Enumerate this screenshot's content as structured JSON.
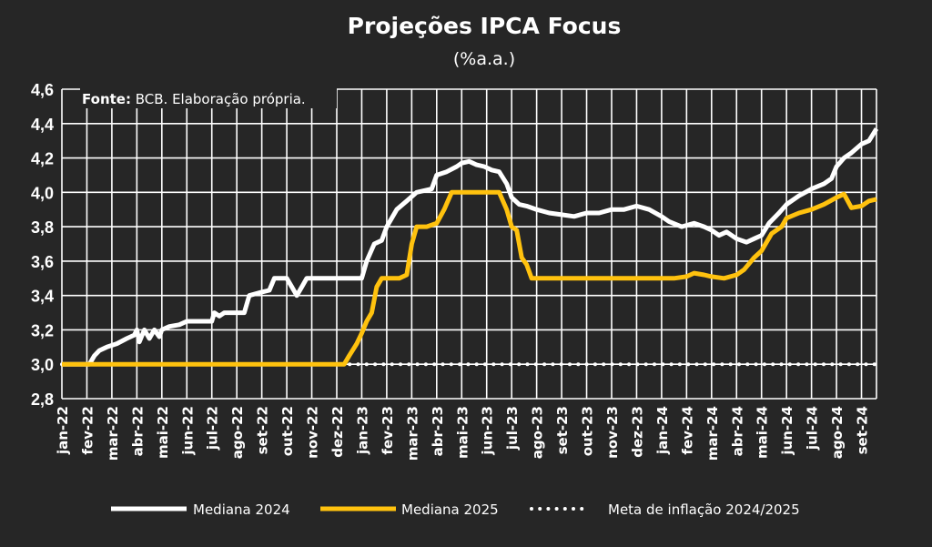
{
  "chart_data": {
    "type": "line",
    "title": "Projeções IPCA Focus",
    "subtitle": "(%a.a.)",
    "source_label": "Fonte:",
    "source_text": " BCB. Elaboração própria.",
    "ylim": [
      2.8,
      4.6
    ],
    "yticks": [
      "2,8",
      "3,0",
      "3,2",
      "3,4",
      "3,6",
      "3,8",
      "4,0",
      "4,2",
      "4,4",
      "4,6"
    ],
    "x_months": [
      "jan-22",
      "fev-22",
      "mar-22",
      "abr-22",
      "mai-22",
      "jun-22",
      "jul-22",
      "ago-22",
      "set-22",
      "out-22",
      "nov-22",
      "dez-22",
      "jan-23",
      "fev-23",
      "mar-23",
      "abr-23",
      "mai-23",
      "jun-23",
      "jul-23",
      "ago-23",
      "set-23",
      "out-23",
      "nov-23",
      "dez-23",
      "jan-24",
      "fev-24",
      "mar-24",
      "abr-24",
      "mai-24",
      "jun-24",
      "jul-24",
      "ago-24",
      "set-24"
    ],
    "xlim_months": [
      0,
      32.6
    ],
    "grid": true,
    "legend_position": "bottom",
    "series": [
      {
        "name": "Mediana 2024",
        "color": "#ffffff",
        "style": "solid",
        "points": [
          [
            0,
            3.0
          ],
          [
            1.1,
            3.0
          ],
          [
            1.3,
            3.05
          ],
          [
            1.5,
            3.08
          ],
          [
            1.8,
            3.1
          ],
          [
            2.2,
            3.12
          ],
          [
            2.6,
            3.15
          ],
          [
            2.9,
            3.17
          ],
          [
            3.0,
            3.2
          ],
          [
            3.1,
            3.13
          ],
          [
            3.3,
            3.2
          ],
          [
            3.5,
            3.15
          ],
          [
            3.7,
            3.2
          ],
          [
            3.9,
            3.16
          ],
          [
            4.0,
            3.2
          ],
          [
            4.3,
            3.22
          ],
          [
            4.7,
            3.23
          ],
          [
            5.0,
            3.25
          ],
          [
            5.5,
            3.25
          ],
          [
            6.0,
            3.25
          ],
          [
            6.1,
            3.3
          ],
          [
            6.3,
            3.28
          ],
          [
            6.5,
            3.3
          ],
          [
            7.0,
            3.3
          ],
          [
            7.3,
            3.3
          ],
          [
            7.5,
            3.4
          ],
          [
            8.0,
            3.42
          ],
          [
            8.3,
            3.43
          ],
          [
            8.5,
            3.5
          ],
          [
            9.0,
            3.5
          ],
          [
            9.2,
            3.45
          ],
          [
            9.4,
            3.4
          ],
          [
            9.6,
            3.45
          ],
          [
            9.8,
            3.5
          ],
          [
            10.5,
            3.5
          ],
          [
            11.0,
            3.5
          ],
          [
            11.5,
            3.5
          ],
          [
            12.0,
            3.5
          ],
          [
            12.2,
            3.6
          ],
          [
            12.5,
            3.7
          ],
          [
            12.8,
            3.72
          ],
          [
            13.0,
            3.8
          ],
          [
            13.2,
            3.85
          ],
          [
            13.4,
            3.9
          ],
          [
            13.8,
            3.95
          ],
          [
            14.2,
            4.0
          ],
          [
            14.8,
            4.02
          ],
          [
            15.0,
            4.1
          ],
          [
            15.4,
            4.12
          ],
          [
            15.8,
            4.15
          ],
          [
            16.0,
            4.17
          ],
          [
            16.3,
            4.18
          ],
          [
            16.6,
            4.16
          ],
          [
            16.9,
            4.15
          ],
          [
            17.2,
            4.13
          ],
          [
            17.5,
            4.12
          ],
          [
            17.8,
            4.05
          ],
          [
            18.0,
            3.97
          ],
          [
            18.3,
            3.93
          ],
          [
            18.6,
            3.92
          ],
          [
            19.0,
            3.9
          ],
          [
            19.5,
            3.88
          ],
          [
            20.0,
            3.87
          ],
          [
            20.5,
            3.86
          ],
          [
            21.0,
            3.88
          ],
          [
            21.5,
            3.88
          ],
          [
            22.0,
            3.9
          ],
          [
            22.5,
            3.9
          ],
          [
            23.0,
            3.92
          ],
          [
            23.5,
            3.9
          ],
          [
            24.0,
            3.86
          ],
          [
            24.3,
            3.83
          ],
          [
            24.8,
            3.8
          ],
          [
            25.3,
            3.82
          ],
          [
            25.7,
            3.8
          ],
          [
            26.0,
            3.78
          ],
          [
            26.3,
            3.75
          ],
          [
            26.6,
            3.77
          ],
          [
            27.0,
            3.73
          ],
          [
            27.4,
            3.71
          ],
          [
            27.7,
            3.73
          ],
          [
            28.0,
            3.75
          ],
          [
            28.3,
            3.82
          ],
          [
            28.7,
            3.88
          ],
          [
            29.0,
            3.93
          ],
          [
            29.5,
            3.98
          ],
          [
            30.0,
            4.02
          ],
          [
            30.5,
            4.05
          ],
          [
            30.8,
            4.08
          ],
          [
            31.0,
            4.15
          ],
          [
            31.3,
            4.2
          ],
          [
            31.6,
            4.23
          ],
          [
            32.0,
            4.28
          ],
          [
            32.3,
            4.3
          ],
          [
            32.6,
            4.37
          ]
        ]
      },
      {
        "name": "Mediana 2025",
        "color": "#ffc20e",
        "style": "solid",
        "points": [
          [
            0,
            3.0
          ],
          [
            11.0,
            3.0
          ],
          [
            11.3,
            3.0
          ],
          [
            11.5,
            3.05
          ],
          [
            11.8,
            3.12
          ],
          [
            12.0,
            3.18
          ],
          [
            12.2,
            3.25
          ],
          [
            12.4,
            3.3
          ],
          [
            12.6,
            3.45
          ],
          [
            12.8,
            3.5
          ],
          [
            13.5,
            3.5
          ],
          [
            13.8,
            3.52
          ],
          [
            14.0,
            3.7
          ],
          [
            14.2,
            3.8
          ],
          [
            14.6,
            3.8
          ],
          [
            15.0,
            3.82
          ],
          [
            15.3,
            3.9
          ],
          [
            15.6,
            4.0
          ],
          [
            16.5,
            4.0
          ],
          [
            17.0,
            4.0
          ],
          [
            17.5,
            4.0
          ],
          [
            17.8,
            3.9
          ],
          [
            18.0,
            3.8
          ],
          [
            18.2,
            3.78
          ],
          [
            18.4,
            3.62
          ],
          [
            18.6,
            3.58
          ],
          [
            18.8,
            3.5
          ],
          [
            19.5,
            3.5
          ],
          [
            20.5,
            3.5
          ],
          [
            21.5,
            3.5
          ],
          [
            22.5,
            3.5
          ],
          [
            23.5,
            3.5
          ],
          [
            24.5,
            3.5
          ],
          [
            25.0,
            3.51
          ],
          [
            25.3,
            3.53
          ],
          [
            25.7,
            3.52
          ],
          [
            26.0,
            3.51
          ],
          [
            26.5,
            3.5
          ],
          [
            27.0,
            3.52
          ],
          [
            27.3,
            3.55
          ],
          [
            27.7,
            3.62
          ],
          [
            28.0,
            3.66
          ],
          [
            28.4,
            3.76
          ],
          [
            28.8,
            3.8
          ],
          [
            29.0,
            3.85
          ],
          [
            29.5,
            3.88
          ],
          [
            30.0,
            3.9
          ],
          [
            30.5,
            3.93
          ],
          [
            31.0,
            3.97
          ],
          [
            31.3,
            3.99
          ],
          [
            31.6,
            3.91
          ],
          [
            32.0,
            3.92
          ],
          [
            32.3,
            3.95
          ],
          [
            32.6,
            3.96
          ]
        ]
      },
      {
        "name": "Meta de inflação 2024/2025",
        "color": "#ffffff",
        "style": "dotted",
        "points": [
          [
            0,
            3.0
          ],
          [
            32.6,
            3.0
          ]
        ]
      }
    ]
  }
}
